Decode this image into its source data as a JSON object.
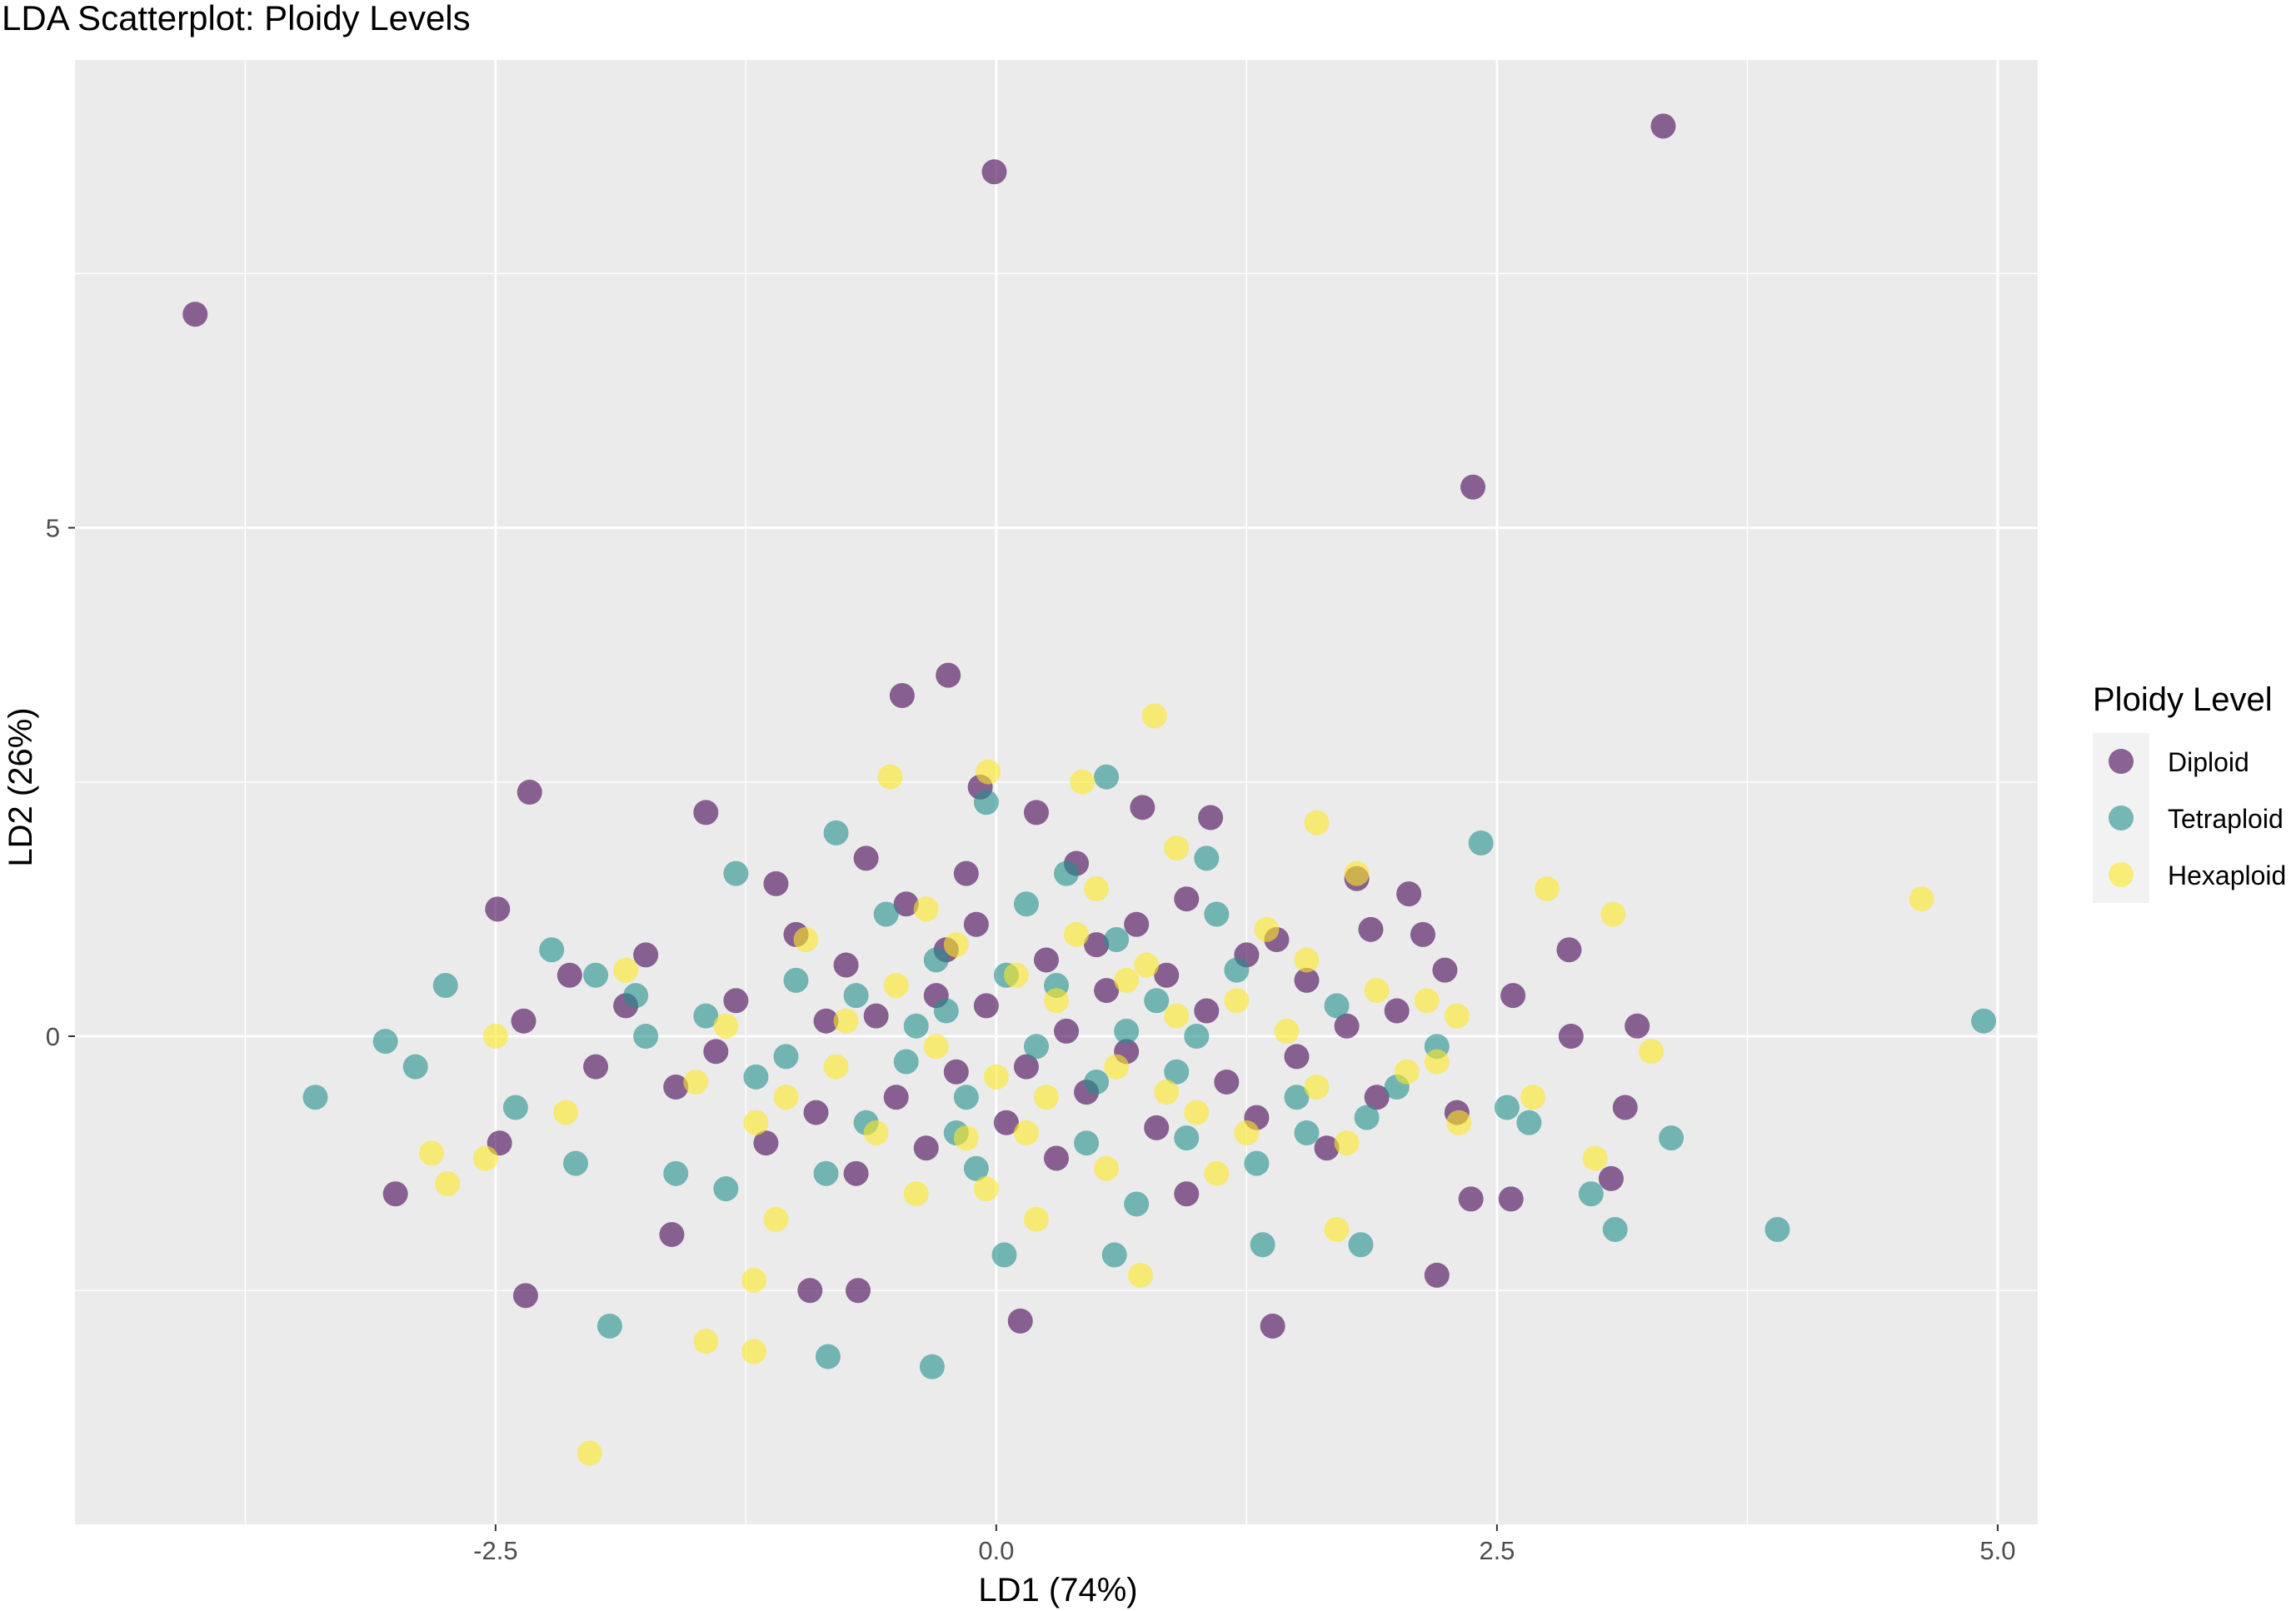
{
  "chart_data": {
    "type": "scatter",
    "title": "LDA Scatterplot: Ploidy Levels",
    "xlabel": "LD1 (74%)",
    "ylabel": "LD2 (26%)",
    "xlim": [
      -4.6,
      5.2
    ],
    "ylim": [
      -4.8,
      9.6
    ],
    "x_ticks": [
      {
        "value": -2.5,
        "label": "-2.5"
      },
      {
        "value": 0.0,
        "label": "0.0"
      },
      {
        "value": 2.5,
        "label": "2.5"
      },
      {
        "value": 5.0,
        "label": "5.0"
      }
    ],
    "y_ticks": [
      {
        "value": 0,
        "label": "0"
      },
      {
        "value": 5,
        "label": "5"
      }
    ],
    "minor_x": [
      -3.75,
      -1.25,
      1.25,
      3.75
    ],
    "minor_y": [
      -2.5,
      2.5,
      7.5
    ],
    "grid": true,
    "panel_background": "#ebebeb",
    "grid_color": "#ffffff",
    "legend": {
      "title": "Ploidy Level",
      "placement": "right",
      "entries": [
        "Diploid",
        "Tetraploid",
        "Hexaploid"
      ]
    },
    "colors": {
      "Diploid": "#440154",
      "Tetraploid": "#21908c",
      "Hexaploid": "#fde725"
    },
    "point_alpha": 0.6,
    "series": [
      {
        "name": "Diploid",
        "points": [
          [
            -0.01,
            8.5
          ],
          [
            3.33,
            8.95
          ],
          [
            2.38,
            5.4
          ],
          [
            -4.0,
            7.1
          ],
          [
            -0.24,
            3.55
          ],
          [
            -0.47,
            3.35
          ],
          [
            -2.33,
            2.4
          ],
          [
            -2.49,
            1.25
          ],
          [
            -1.45,
            2.2
          ],
          [
            0.2,
            2.2
          ],
          [
            -0.08,
            2.45
          ],
          [
            0.73,
            2.25
          ],
          [
            1.07,
            2.15
          ],
          [
            2.06,
            1.4
          ],
          [
            2.13,
            1.0
          ],
          [
            2.24,
            0.65
          ],
          [
            1.87,
            1.05
          ],
          [
            2.58,
            0.4
          ],
          [
            2.86,
            0.85
          ],
          [
            2.87,
            0.0
          ],
          [
            3.2,
            0.1
          ],
          [
            3.14,
            -0.7
          ],
          [
            3.07,
            -1.4
          ],
          [
            2.57,
            -1.6
          ],
          [
            2.2,
            -2.35
          ],
          [
            2.37,
            -1.6
          ],
          [
            1.38,
            -2.85
          ],
          [
            0.12,
            -2.8
          ],
          [
            -0.93,
            -2.5
          ],
          [
            -0.69,
            -2.5
          ],
          [
            -2.35,
            -2.55
          ],
          [
            -3.0,
            -1.55
          ],
          [
            -2.48,
            -1.05
          ],
          [
            -1.62,
            -1.95
          ],
          [
            -2.36,
            0.15
          ],
          [
            -2.13,
            0.6
          ],
          [
            -1.85,
            0.3
          ],
          [
            -1.1,
            1.5
          ],
          [
            -0.65,
            1.75
          ],
          [
            0.4,
            1.7
          ],
          [
            1.8,
            1.55
          ],
          [
            1.25,
            0.8
          ],
          [
            -0.3,
            0.4
          ],
          [
            0.5,
            0.9
          ],
          [
            0.15,
            -0.3
          ],
          [
            -0.5,
            -0.6
          ],
          [
            0.8,
            -0.9
          ],
          [
            1.5,
            -0.2
          ],
          [
            -1.3,
            0.35
          ],
          [
            -0.9,
            -0.75
          ],
          [
            1.05,
            0.25
          ],
          [
            -0.1,
            1.1
          ],
          [
            0.65,
            -0.15
          ],
          [
            -0.75,
            0.7
          ],
          [
            1.4,
            0.95
          ],
          [
            0.3,
            -1.2
          ],
          [
            -0.35,
            -1.1
          ],
          [
            1.9,
            -0.6
          ],
          [
            -1.6,
            -0.5
          ],
          [
            0.95,
            1.35
          ],
          [
            -0.05,
            0.3
          ],
          [
            0.55,
            0.45
          ],
          [
            -0.6,
            0.2
          ],
          [
            0.25,
            0.75
          ],
          [
            1.65,
            -1.1
          ],
          [
            -1.15,
            -1.05
          ],
          [
            0.45,
            -0.55
          ],
          [
            -0.2,
            -0.35
          ],
          [
            1.15,
            -0.45
          ],
          [
            -1.75,
            0.8
          ],
          [
            2.3,
            -0.75
          ],
          [
            -0.45,
            1.3
          ],
          [
            0.85,
            0.6
          ],
          [
            0.05,
            -0.85
          ],
          [
            -0.85,
            0.15
          ],
          [
            1.55,
            0.55
          ],
          [
            -0.25,
            0.85
          ],
          [
            0.35,
            0.05
          ],
          [
            -1.4,
            -0.15
          ],
          [
            0.7,
            1.1
          ],
          [
            1.3,
            -0.8
          ],
          [
            -0.7,
            -1.35
          ],
          [
            2.0,
            0.25
          ],
          [
            -2.0,
            -0.3
          ],
          [
            0.95,
            -1.55
          ],
          [
            -0.15,
            1.6
          ],
          [
            1.75,
            0.1
          ],
          [
            -1.0,
            1.0
          ]
        ]
      },
      {
        "name": "Tetraploid",
        "points": [
          [
            -3.4,
            -0.6
          ],
          [
            4.93,
            0.15
          ],
          [
            2.42,
            1.9
          ],
          [
            3.37,
            -1.0
          ],
          [
            3.9,
            -1.9
          ],
          [
            3.09,
            -1.9
          ],
          [
            2.97,
            -1.55
          ],
          [
            2.66,
            -0.85
          ],
          [
            2.55,
            -0.7
          ],
          [
            2.0,
            -0.5
          ],
          [
            1.82,
            -2.05
          ],
          [
            1.33,
            -2.05
          ],
          [
            0.59,
            -2.15
          ],
          [
            0.04,
            -2.15
          ],
          [
            -0.32,
            -3.25
          ],
          [
            -0.84,
            -3.15
          ],
          [
            -1.93,
            -2.85
          ],
          [
            -2.75,
            0.5
          ],
          [
            -2.9,
            -0.3
          ],
          [
            -3.05,
            -0.05
          ],
          [
            -2.22,
            0.85
          ],
          [
            -2.0,
            0.6
          ],
          [
            -1.75,
            0.0
          ],
          [
            -1.3,
            1.6
          ],
          [
            -0.8,
            2.0
          ],
          [
            -0.05,
            2.3
          ],
          [
            0.55,
            2.55
          ],
          [
            1.05,
            1.75
          ],
          [
            -2.1,
            -1.25
          ],
          [
            -1.6,
            -1.35
          ],
          [
            0.7,
            -1.65
          ],
          [
            0.3,
            0.5
          ],
          [
            -0.4,
            0.1
          ],
          [
            0.9,
            -0.35
          ],
          [
            -1.2,
            -0.4
          ],
          [
            0.15,
            1.3
          ],
          [
            -0.65,
            -0.85
          ],
          [
            1.2,
            0.65
          ],
          [
            -0.15,
            -0.6
          ],
          [
            0.45,
            -1.05
          ],
          [
            -1.0,
            0.55
          ],
          [
            1.5,
            -0.6
          ],
          [
            0.6,
            0.95
          ],
          [
            -0.3,
            0.75
          ],
          [
            1.0,
            0.0
          ],
          [
            -0.85,
            -1.35
          ],
          [
            0.2,
            -0.1
          ],
          [
            -1.45,
            0.2
          ],
          [
            1.7,
            0.3
          ],
          [
            -0.1,
            -1.3
          ],
          [
            0.8,
            0.35
          ],
          [
            -0.55,
            1.2
          ],
          [
            1.3,
            -1.25
          ],
          [
            -1.8,
            0.4
          ],
          [
            0.05,
            0.6
          ],
          [
            -0.2,
            -0.95
          ],
          [
            0.5,
            -0.45
          ],
          [
            1.1,
            1.2
          ],
          [
            -1.05,
            -0.2
          ],
          [
            2.2,
            -0.1
          ],
          [
            -0.7,
            0.4
          ],
          [
            0.35,
            1.6
          ],
          [
            1.55,
            -0.95
          ],
          [
            -1.35,
            -1.5
          ],
          [
            0.65,
            0.05
          ],
          [
            -0.45,
            -0.25
          ],
          [
            1.85,
            -0.8
          ],
          [
            -2.4,
            -0.7
          ],
          [
            0.95,
            -1.0
          ],
          [
            -0.25,
            0.25
          ]
        ]
      },
      {
        "name": "Hexaploid",
        "points": [
          [
            -2.03,
            -4.1
          ],
          [
            4.62,
            1.35
          ],
          [
            3.08,
            1.2
          ],
          [
            2.75,
            1.45
          ],
          [
            0.79,
            3.15
          ],
          [
            1.6,
            2.1
          ],
          [
            3.27,
            -0.15
          ],
          [
            2.99,
            -1.2
          ],
          [
            2.68,
            -0.6
          ],
          [
            2.31,
            -0.85
          ],
          [
            2.3,
            0.2
          ],
          [
            2.2,
            -0.25
          ],
          [
            -2.55,
            -1.2
          ],
          [
            -2.82,
            -1.15
          ],
          [
            -2.74,
            -1.45
          ],
          [
            -2.5,
            0.0
          ],
          [
            -2.15,
            -0.75
          ],
          [
            -1.45,
            -3.0
          ],
          [
            -1.21,
            -3.1
          ],
          [
            -1.21,
            -2.4
          ],
          [
            -0.04,
            2.6
          ],
          [
            -0.53,
            2.55
          ],
          [
            0.43,
            2.5
          ],
          [
            0.9,
            1.85
          ],
          [
            1.7,
            -1.9
          ],
          [
            0.72,
            -2.35
          ],
          [
            0.2,
            -1.8
          ],
          [
            1.8,
            1.6
          ],
          [
            -1.1,
            -1.8
          ],
          [
            0.1,
            0.6
          ],
          [
            -0.3,
            -0.1
          ],
          [
            0.6,
            -0.3
          ],
          [
            1.2,
            0.35
          ],
          [
            -0.8,
            -0.3
          ],
          [
            0.4,
            1.0
          ],
          [
            -0.5,
            0.5
          ],
          [
            1.0,
            -0.75
          ],
          [
            -0.15,
            -1.0
          ],
          [
            1.45,
            0.05
          ],
          [
            0.75,
            0.7
          ],
          [
            -1.2,
            -0.85
          ],
          [
            0.25,
            -0.6
          ],
          [
            1.9,
            0.45
          ],
          [
            -0.95,
            0.95
          ],
          [
            0.55,
            -1.3
          ],
          [
            -0.35,
            1.25
          ],
          [
            1.6,
            -0.5
          ],
          [
            0.0,
            -0.4
          ],
          [
            -1.5,
            -0.45
          ],
          [
            0.9,
            0.2
          ],
          [
            -0.6,
            -0.95
          ],
          [
            1.35,
            1.05
          ],
          [
            -1.85,
            0.65
          ],
          [
            0.3,
            0.35
          ],
          [
            1.1,
            -1.35
          ],
          [
            -0.2,
            0.9
          ],
          [
            1.75,
            -1.05
          ],
          [
            -0.75,
            0.15
          ],
          [
            0.85,
            -0.55
          ],
          [
            2.05,
            -0.35
          ],
          [
            -0.05,
            -1.5
          ],
          [
            0.5,
            1.45
          ],
          [
            -1.35,
            0.1
          ],
          [
            1.25,
            -0.95
          ],
          [
            -0.4,
            -1.55
          ],
          [
            0.65,
            0.55
          ],
          [
            1.55,
            0.75
          ],
          [
            -1.05,
            -0.6
          ],
          [
            0.15,
            -0.95
          ],
          [
            2.15,
            0.35
          ]
        ]
      }
    ]
  }
}
